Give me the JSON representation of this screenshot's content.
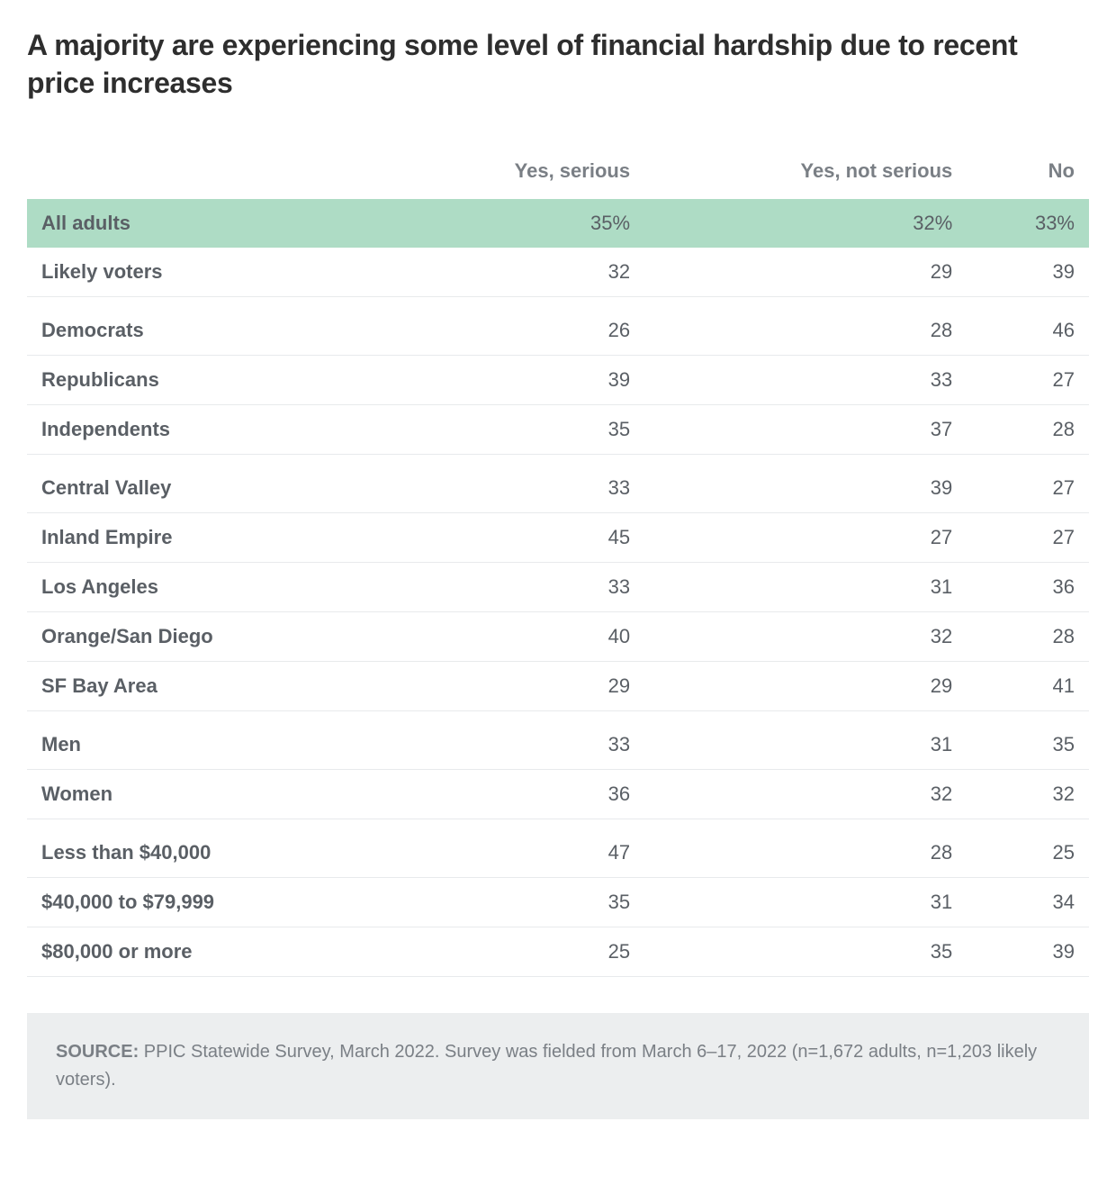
{
  "title": "A majority are experiencing some level of financial hardship due to recent price increases",
  "table": {
    "type": "table",
    "columns": [
      "",
      "Yes, serious",
      "Yes, not serious",
      "No"
    ],
    "highlight_row_bg": "#aedcc5",
    "border_color": "#e8eaec",
    "header_color": "#7a7f85",
    "label_color": "#5a5f65",
    "value_color": "#5a5f65",
    "title_fontsize": 32,
    "cell_fontsize": 22,
    "groups": [
      {
        "rows": [
          {
            "label": "All adults",
            "values": [
              "35%",
              "32%",
              "33%"
            ],
            "highlight": true
          },
          {
            "label": "Likely voters",
            "values": [
              "32",
              "29",
              "39"
            ]
          }
        ]
      },
      {
        "rows": [
          {
            "label": "Democrats",
            "values": [
              "26",
              "28",
              "46"
            ]
          },
          {
            "label": "Republicans",
            "values": [
              "39",
              "33",
              "27"
            ]
          },
          {
            "label": "Independents",
            "values": [
              "35",
              "37",
              "28"
            ]
          }
        ]
      },
      {
        "rows": [
          {
            "label": "Central Valley",
            "values": [
              "33",
              "39",
              "27"
            ]
          },
          {
            "label": "Inland Empire",
            "values": [
              "45",
              "27",
              "27"
            ]
          },
          {
            "label": "Los Angeles",
            "values": [
              "33",
              "31",
              "36"
            ]
          },
          {
            "label": "Orange/San Diego",
            "values": [
              "40",
              "32",
              "28"
            ]
          },
          {
            "label": "SF Bay Area",
            "values": [
              "29",
              "29",
              "41"
            ]
          }
        ]
      },
      {
        "rows": [
          {
            "label": "Men",
            "values": [
              "33",
              "31",
              "35"
            ]
          },
          {
            "label": "Women",
            "values": [
              "36",
              "32",
              "32"
            ]
          }
        ]
      },
      {
        "rows": [
          {
            "label": "Less than $40,000",
            "values": [
              "47",
              "28",
              "25"
            ]
          },
          {
            "label": "$40,000 to $79,999",
            "values": [
              "35",
              "31",
              "34"
            ]
          },
          {
            "label": "$80,000 or more",
            "values": [
              "25",
              "35",
              "39"
            ]
          }
        ]
      }
    ]
  },
  "source": {
    "label": "SOURCE:",
    "text": " PPIC Statewide Survey, March 2022. Survey was fielded from March 6–17, 2022 (n=1,672 adults, n=1,203 likely voters).",
    "bg": "#eceeef",
    "fontsize": 20
  }
}
